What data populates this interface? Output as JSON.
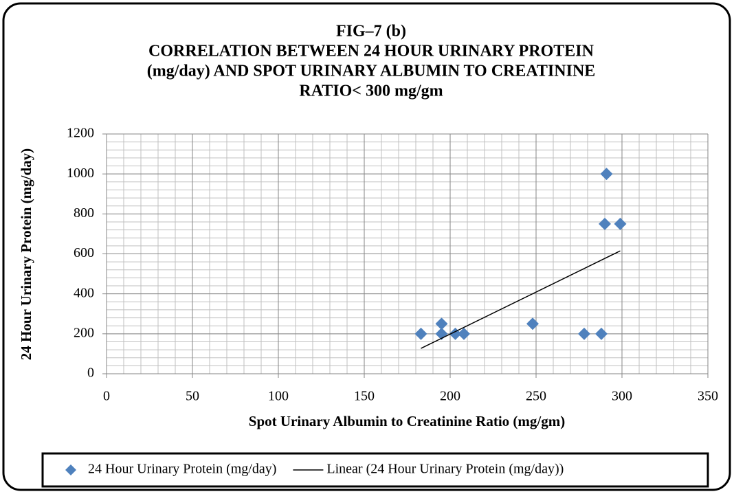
{
  "chart_data": {
    "type": "scatter",
    "title": [
      "FIG–7 (b)",
      "CORRELATION BETWEEN 24 HOUR URINARY PROTEIN",
      "(mg/day) AND SPOT URINARY ALBUMIN TO CREATININE",
      "RATIO< 300 mg/gm"
    ],
    "xlabel": "Spot Urinary Albumin to Creatinine Ratio (mg/gm)",
    "ylabel": "24 Hour Urinary Protein (mg/day)",
    "xlim": [
      0,
      350
    ],
    "xticks": [
      0,
      50,
      100,
      150,
      200,
      250,
      300,
      350
    ],
    "ylim": [
      0,
      1200
    ],
    "yticks": [
      0,
      200,
      400,
      600,
      800,
      1000,
      1200
    ],
    "grid": true,
    "x_minor_step": 10,
    "y_minor_step": 40,
    "legend": "bottom",
    "series": [
      {
        "name": "24 Hour Urinary Protein (mg/day)",
        "color": "#4f81bd",
        "marker": "diamond",
        "x": [
          183,
          195,
          195,
          203,
          208,
          248,
          278,
          288,
          291,
          290,
          299
        ],
        "values": [
          200,
          250,
          200,
          200,
          200,
          250,
          200,
          200,
          1000,
          750,
          750
        ]
      },
      {
        "name": "Linear (24 Hour Urinary Protein (mg/day))",
        "color": "#000000",
        "marker": "line",
        "x": [
          183,
          299
        ],
        "values": [
          127,
          615
        ]
      }
    ]
  }
}
